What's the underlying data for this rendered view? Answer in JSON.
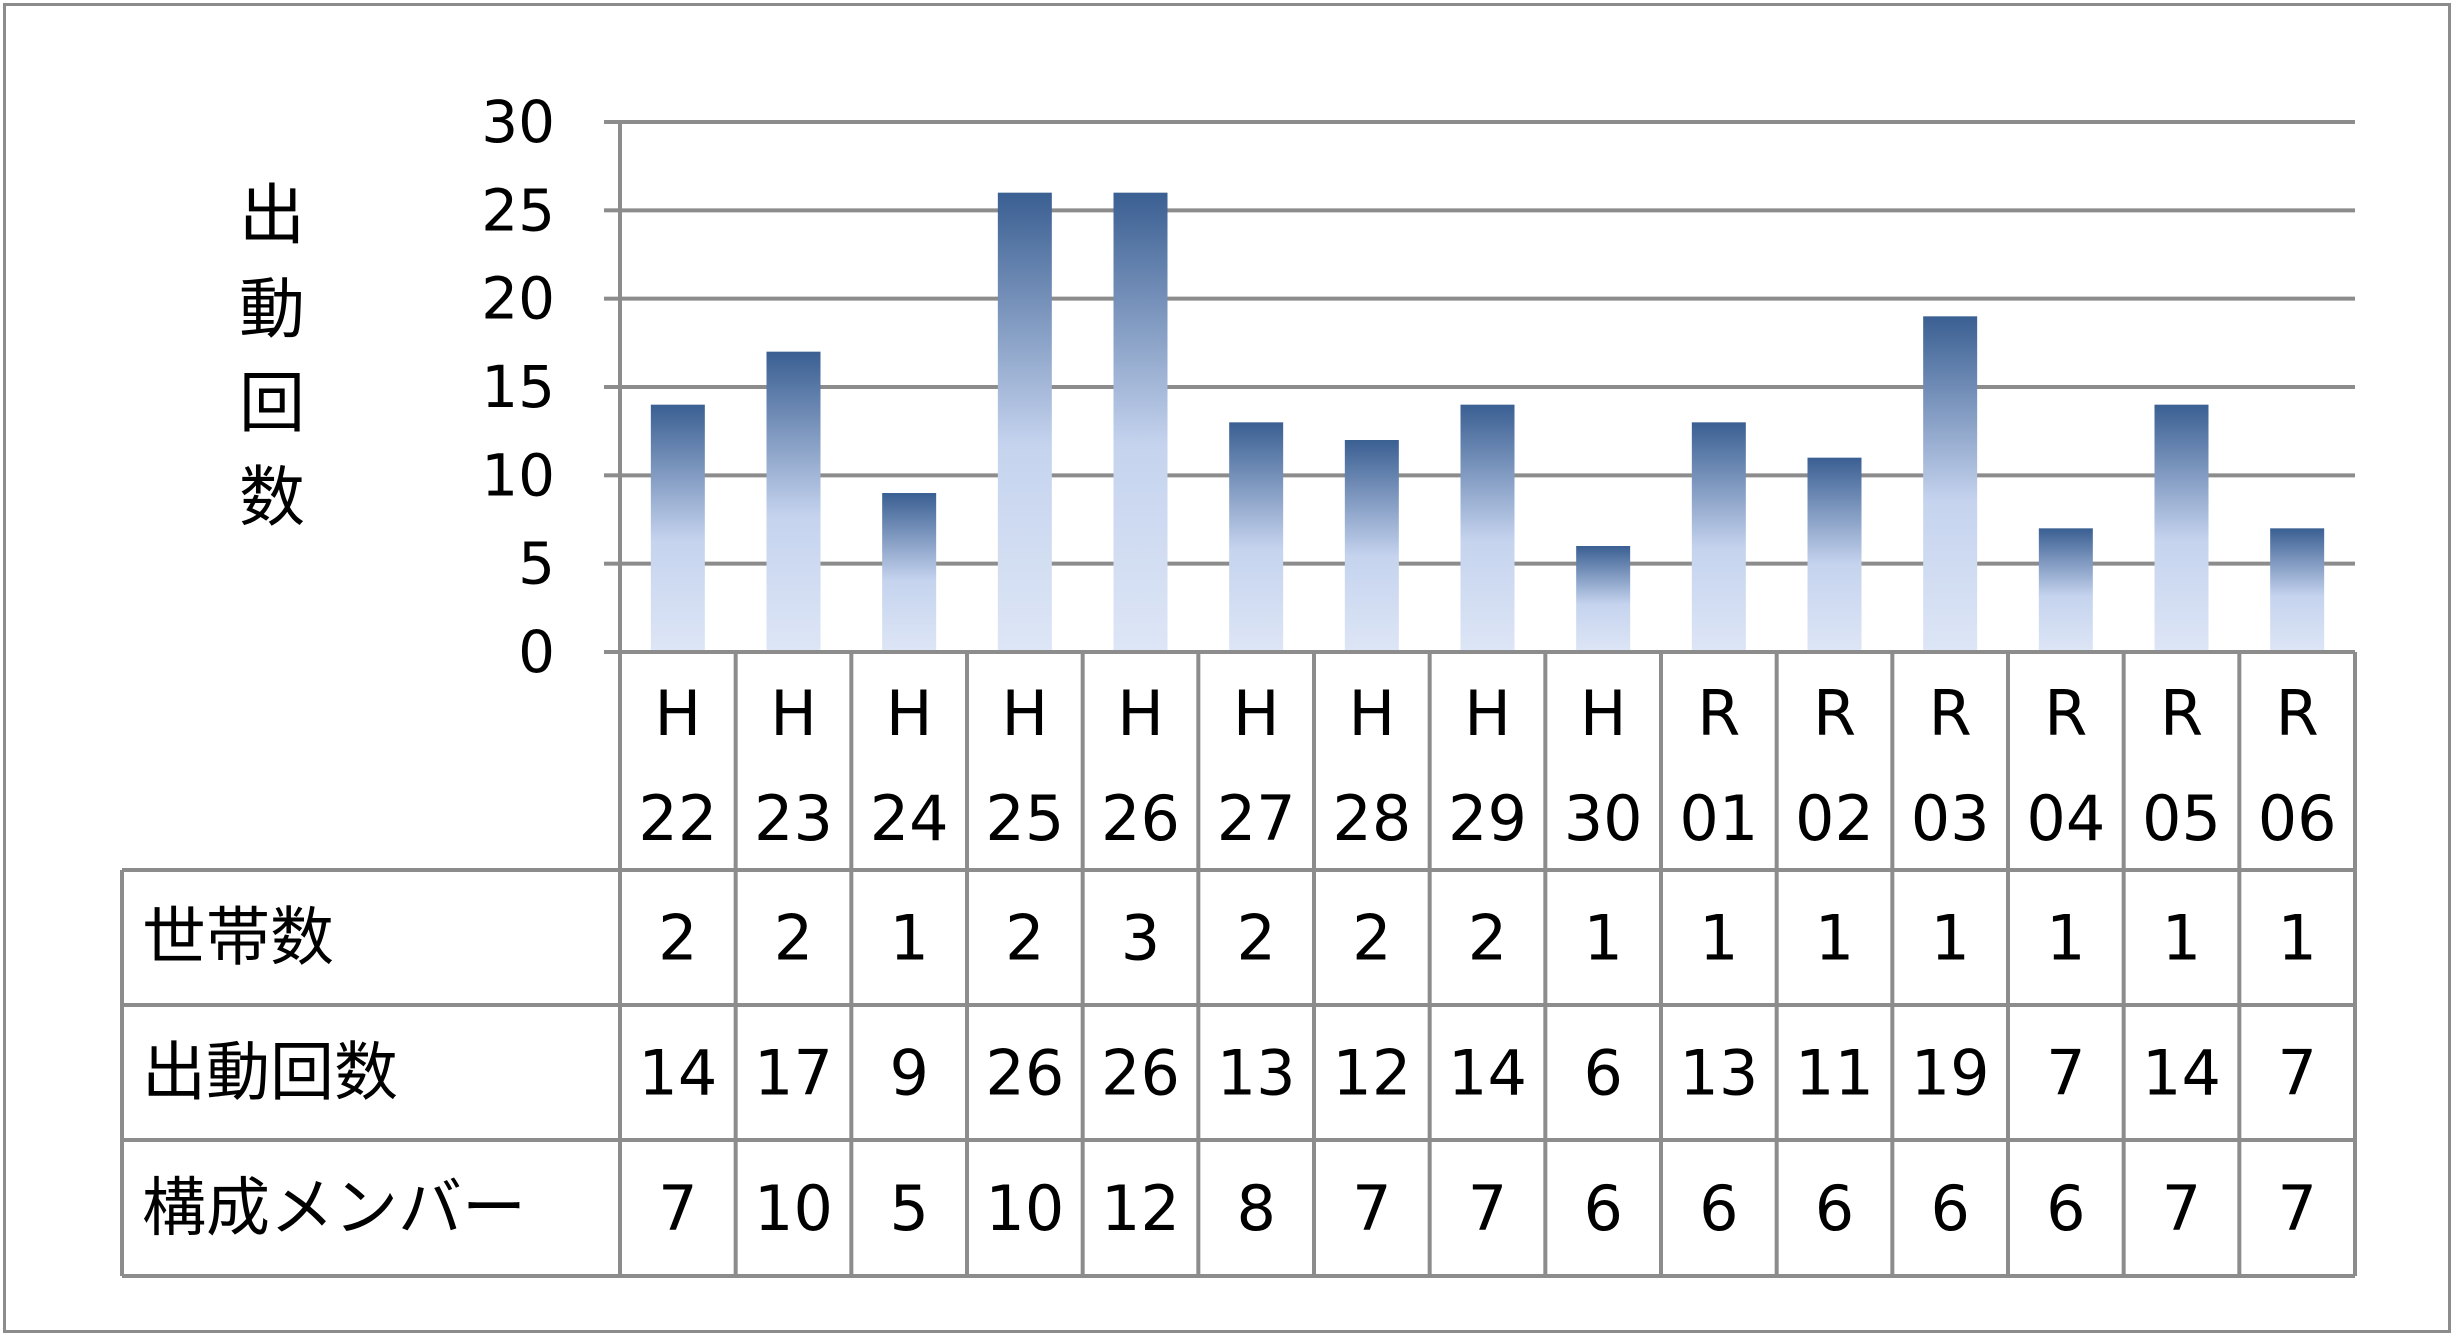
{
  "chart_data": {
    "type": "bar",
    "ylabel": "出動回数",
    "ylim": [
      0,
      30
    ],
    "yticks": [
      "0",
      "5",
      "10",
      "15",
      "20",
      "25",
      "30"
    ],
    "grid": true,
    "categories": [
      {
        "top": "H",
        "bottom": "22"
      },
      {
        "top": "H",
        "bottom": "23"
      },
      {
        "top": "H",
        "bottom": "24"
      },
      {
        "top": "H",
        "bottom": "25"
      },
      {
        "top": "H",
        "bottom": "26"
      },
      {
        "top": "H",
        "bottom": "27"
      },
      {
        "top": "H",
        "bottom": "28"
      },
      {
        "top": "H",
        "bottom": "29"
      },
      {
        "top": "H",
        "bottom": "30"
      },
      {
        "top": "R",
        "bottom": "01"
      },
      {
        "top": "R",
        "bottom": "02"
      },
      {
        "top": "R",
        "bottom": "03"
      },
      {
        "top": "R",
        "bottom": "04"
      },
      {
        "top": "R",
        "bottom": "05"
      },
      {
        "top": "R",
        "bottom": "06"
      }
    ],
    "values": [
      14,
      17,
      9,
      26,
      26,
      13,
      12,
      14,
      6,
      13,
      11,
      19,
      7,
      14,
      7
    ],
    "table": [
      {
        "label": "世帯数",
        "values": [
          "2",
          "2",
          "1",
          "2",
          "3",
          "2",
          "2",
          "2",
          "1",
          "1",
          "1",
          "1",
          "1",
          "1",
          "1"
        ]
      },
      {
        "label": "出動回数",
        "values": [
          "14",
          "17",
          "9",
          "26",
          "26",
          "13",
          "12",
          "14",
          "6",
          "13",
          "11",
          "19",
          "7",
          "14",
          "7"
        ]
      },
      {
        "label": "構成メンバー",
        "values": [
          "7",
          "10",
          "5",
          "10",
          "12",
          "8",
          "7",
          "7",
          "6",
          "6",
          "6",
          "6",
          "6",
          "7",
          "7"
        ]
      }
    ],
    "colors": {
      "bar_top": "#3a5f92",
      "bar_mid": "#c5d3ee",
      "bar_bottom": "#dde6f6",
      "grid": "#8c8c8c"
    }
  }
}
